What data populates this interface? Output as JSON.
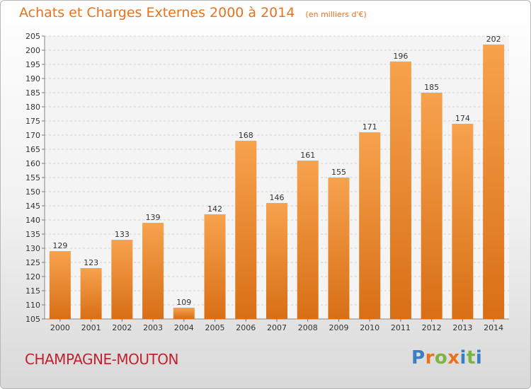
{
  "header": {
    "title": "Achats et Charges Externes 2000 à 2014",
    "unit": "(en milliers d'€)"
  },
  "footer": {
    "location": "CHAMPAGNE-MOUTON",
    "logo_text": "Proxiti"
  },
  "colors": {
    "accent": "#e8731c",
    "location": "#c2212f",
    "bar_light": "#f7a24d",
    "bar_dark": "#d86f16"
  },
  "chart_data": {
    "type": "bar",
    "categories": [
      "2000",
      "2001",
      "2002",
      "2003",
      "2004",
      "2005",
      "2006",
      "2007",
      "2008",
      "2009",
      "2010",
      "2011",
      "2012",
      "2013",
      "2014"
    ],
    "values": [
      129,
      123,
      133,
      139,
      109,
      142,
      168,
      146,
      161,
      155,
      171,
      196,
      185,
      174,
      202
    ],
    "ylim": [
      105,
      205
    ],
    "yticks": [
      105,
      110,
      115,
      120,
      125,
      130,
      135,
      140,
      145,
      150,
      155,
      160,
      165,
      170,
      175,
      180,
      185,
      190,
      195,
      200,
      205
    ],
    "grid": true,
    "data_labels": true
  }
}
